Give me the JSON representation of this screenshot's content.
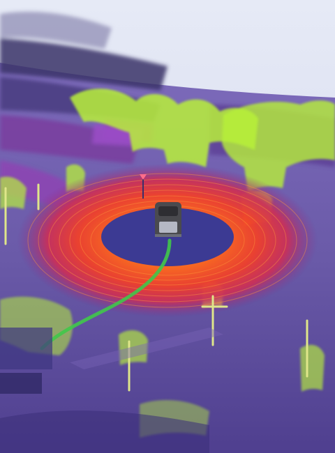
{
  "scene": {
    "kind": "lidar-point-cloud-visualization",
    "elements": [
      "haze-sky",
      "building-blocks",
      "vegetation-point-clouds",
      "ground-plane",
      "lidar-scan-rings",
      "blind-spot-disc",
      "ego-vehicle",
      "planned-path",
      "waypoint-marker",
      "street-poles"
    ]
  },
  "colors": {
    "sky": "#e8ecf6",
    "ground": "#6a5aa8",
    "ground_dark": "#4a3a88",
    "vegetation": "#b8f03a",
    "ring_inner": "#ff5a1e",
    "ring_outer": "#b02a70",
    "blind_spot": "#3e3a92",
    "vehicle": "#4a4a4e",
    "path": "#3ec24a",
    "marker": "#ff6e8a"
  }
}
